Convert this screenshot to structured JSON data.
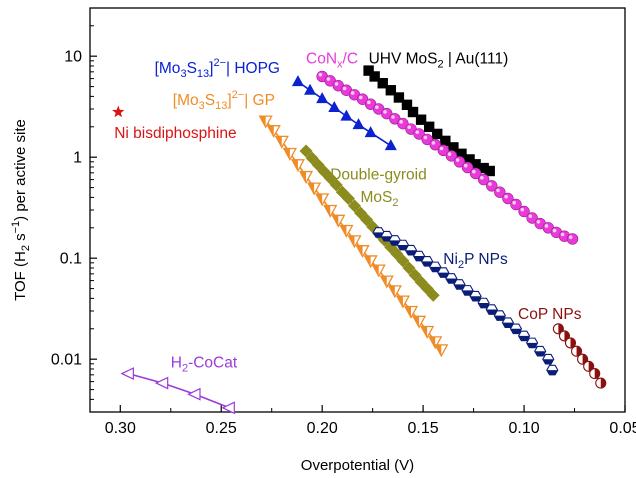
{
  "chart_data": {
    "type": "scatter",
    "title": "",
    "xlabel": "Overpotential (V)",
    "ylabel_parts": {
      "prefix": "TOF (H",
      "sub": "2",
      "mid": " s",
      "sup": "−1",
      "suffix": ") per active site"
    },
    "x_scale": "linear",
    "x_reversed": true,
    "xlim": [
      0.315,
      0.05
    ],
    "y_scale": "log",
    "ylim": [
      0.003,
      30
    ],
    "x_ticks": [
      0.3,
      0.25,
      0.2,
      0.15,
      0.1,
      0.05
    ],
    "x_tick_labels": [
      "0.30",
      "0.25",
      "0.20",
      "0.15",
      "0.10",
      "0.05"
    ],
    "y_ticks": [
      0.01,
      0.1,
      1,
      10
    ],
    "y_tick_labels": [
      "0.01",
      "0.1",
      "1",
      "10"
    ],
    "series": [
      {
        "label_parts": [
          {
            "t": "UHV MoS"
          },
          {
            "t": "2",
            "k": "sub"
          },
          {
            "t": " | Au(111)"
          }
        ],
        "color": "#000000",
        "marker": "square",
        "label_anchor": {
          "x": 0.177,
          "y": 8.5
        },
        "x": [
          0.177,
          0.174,
          0.17,
          0.166,
          0.162,
          0.158,
          0.155,
          0.151,
          0.147,
          0.143,
          0.139,
          0.135,
          0.131,
          0.127,
          0.124,
          0.12,
          0.117
        ],
        "y": [
          7.2,
          6.3,
          5.4,
          4.6,
          3.9,
          3.3,
          2.8,
          2.35,
          2.0,
          1.7,
          1.45,
          1.25,
          1.08,
          0.95,
          0.85,
          0.78,
          0.73
        ]
      },
      {
        "label_parts": [
          {
            "t": "CoN"
          },
          {
            "t": "x",
            "k": "sub"
          },
          {
            "t": "/C"
          }
        ],
        "color": "#e83ad8",
        "marker": "sphere",
        "label_anchor": {
          "x": 0.208,
          "y": 8.5
        },
        "x": [
          0.2,
          0.196,
          0.192,
          0.188,
          0.184,
          0.18,
          0.176,
          0.172,
          0.168,
          0.164,
          0.16,
          0.156,
          0.152,
          0.148,
          0.144,
          0.14,
          0.136,
          0.132,
          0.128,
          0.124,
          0.12,
          0.116,
          0.112,
          0.108,
          0.104,
          0.1,
          0.096,
          0.092,
          0.088,
          0.084,
          0.08,
          0.076
        ],
        "y": [
          6.3,
          5.7,
          5.1,
          4.6,
          4.15,
          3.75,
          3.35,
          3.0,
          2.7,
          2.4,
          2.15,
          1.9,
          1.7,
          1.5,
          1.33,
          1.17,
          1.03,
          0.9,
          0.79,
          0.69,
          0.6,
          0.52,
          0.45,
          0.39,
          0.34,
          0.29,
          0.25,
          0.22,
          0.2,
          0.18,
          0.165,
          0.155
        ]
      },
      {
        "label_parts": [
          {
            "t": "[Mo"
          },
          {
            "t": "3",
            "k": "sub"
          },
          {
            "t": "S"
          },
          {
            "t": "13",
            "k": "sub"
          },
          {
            "t": "]"
          },
          {
            "t": "2−",
            "k": "sup"
          },
          {
            "t": "| HOPG"
          }
        ],
        "color": "#0a22d0",
        "marker": "triangle-up",
        "label_anchor": {
          "x": 0.283,
          "y": 6.8
        },
        "x": [
          0.212,
          0.206,
          0.2,
          0.194,
          0.188,
          0.182,
          0.176,
          0.166
        ],
        "y": [
          5.6,
          4.6,
          3.8,
          3.1,
          2.55,
          2.1,
          1.75,
          1.3
        ]
      },
      {
        "label_parts": [
          {
            "t": "[Mo"
          },
          {
            "t": "3",
            "k": "sub"
          },
          {
            "t": "S"
          },
          {
            "t": "13",
            "k": "sub"
          },
          {
            "t": "]"
          },
          {
            "t": "2−",
            "k": "sup"
          },
          {
            "t": "| GP"
          }
        ],
        "color": "#f08c28",
        "marker": "triangle-down",
        "label_anchor": {
          "x": 0.274,
          "y": 3.3
        },
        "x": [
          0.228,
          0.224,
          0.22,
          0.216,
          0.212,
          0.208,
          0.204,
          0.2,
          0.196,
          0.192,
          0.188,
          0.184,
          0.18,
          0.176,
          0.172,
          0.168,
          0.164,
          0.16,
          0.156,
          0.152,
          0.148,
          0.144,
          0.141
        ],
        "y": [
          2.3,
          1.85,
          1.45,
          1.1,
          0.85,
          0.65,
          0.5,
          0.39,
          0.3,
          0.24,
          0.19,
          0.15,
          0.12,
          0.095,
          0.077,
          0.06,
          0.048,
          0.038,
          0.03,
          0.024,
          0.019,
          0.015,
          0.0125
        ]
      },
      {
        "label_parts": [
          {
            "t": "Double-gyroid"
          }
        ],
        "label2_parts": [
          {
            "t": "MoS"
          },
          {
            "t": "2",
            "k": "sub"
          }
        ],
        "color": "#8c8c1e",
        "marker": "diamond",
        "label_anchor": {
          "x": 0.196,
          "y": 0.6
        },
        "label2_anchor": {
          "x": 0.181,
          "y": 0.36
        },
        "x": [
          0.208,
          0.205,
          0.202,
          0.199,
          0.196,
          0.193,
          0.19,
          0.187,
          0.184,
          0.181,
          0.178,
          0.175,
          0.172,
          0.169,
          0.166,
          0.163,
          0.16,
          0.157,
          0.154,
          0.151,
          0.148,
          0.145
        ],
        "y": [
          1.15,
          0.98,
          0.84,
          0.72,
          0.62,
          0.53,
          0.45,
          0.39,
          0.33,
          0.28,
          0.24,
          0.205,
          0.175,
          0.15,
          0.128,
          0.11,
          0.094,
          0.08,
          0.068,
          0.058,
          0.05,
          0.043
        ]
      },
      {
        "label_parts": [
          {
            "t": "Ni"
          },
          {
            "t": "2",
            "k": "sub"
          },
          {
            "t": "P NPs"
          }
        ],
        "color": "#0a1e78",
        "marker": "half-hex",
        "label_anchor": {
          "x": 0.14,
          "y": 0.088
        },
        "x": [
          0.172,
          0.168,
          0.164,
          0.16,
          0.156,
          0.152,
          0.148,
          0.144,
          0.14,
          0.136,
          0.132,
          0.128,
          0.124,
          0.12,
          0.116,
          0.112,
          0.108,
          0.104,
          0.1,
          0.096,
          0.092,
          0.088,
          0.086
        ],
        "y": [
          0.18,
          0.165,
          0.15,
          0.135,
          0.12,
          0.105,
          0.093,
          0.082,
          0.072,
          0.063,
          0.055,
          0.048,
          0.042,
          0.036,
          0.031,
          0.027,
          0.023,
          0.02,
          0.017,
          0.0145,
          0.012,
          0.01,
          0.0078
        ]
      },
      {
        "label_parts": [
          {
            "t": "CoP NPs"
          }
        ],
        "color": "#8b1010",
        "marker": "half-circle",
        "label_anchor": {
          "x": 0.103,
          "y": 0.025
        },
        "x": [
          0.083,
          0.08,
          0.077,
          0.074,
          0.071,
          0.068,
          0.065,
          0.062
        ],
        "y": [
          0.02,
          0.017,
          0.0145,
          0.012,
          0.01,
          0.0085,
          0.0072,
          0.0058
        ]
      },
      {
        "label_parts": [
          {
            "t": "Ni bisdiphosphine"
          }
        ],
        "color": "#d81414",
        "marker": "star",
        "label_anchor": {
          "x": 0.303,
          "y": 1.55
        },
        "x": [
          0.301
        ],
        "y": [
          2.8
        ]
      },
      {
        "label_parts": [
          {
            "t": "H"
          },
          {
            "t": "2",
            "k": "sub"
          },
          {
            "t": "-CoCat"
          }
        ],
        "color": "#9a3cdc",
        "marker": "triangle-left",
        "label_anchor": {
          "x": 0.275,
          "y": 0.0083
        },
        "x": [
          0.296,
          0.279,
          0.263,
          0.246
        ],
        "y": [
          0.0072,
          0.0058,
          0.0045,
          0.0033
        ]
      }
    ]
  }
}
